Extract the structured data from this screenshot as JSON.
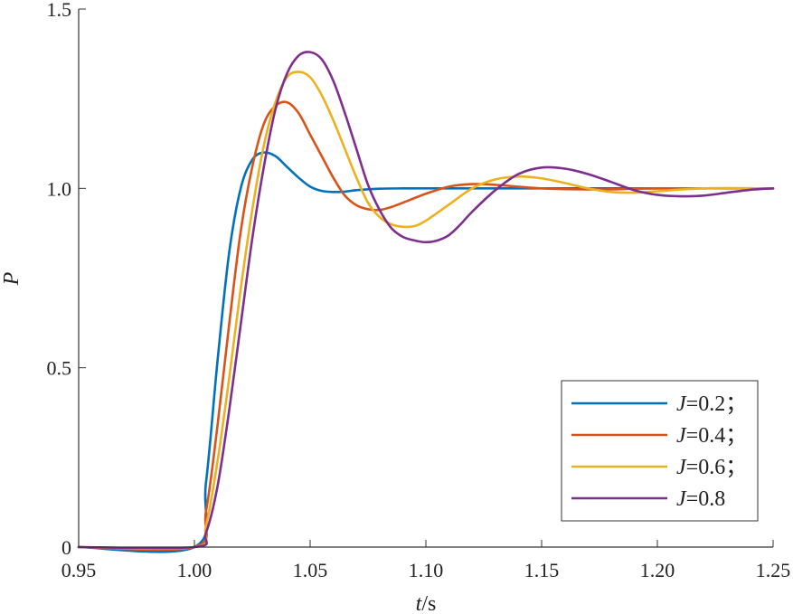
{
  "chart_data": {
    "type": "line",
    "xlabel_italic": "t",
    "xlabel_unit": "/s",
    "ylabel": "P",
    "xlim": [
      0.95,
      1.25
    ],
    "ylim": [
      0,
      1.5
    ],
    "xticks": [
      "0.95",
      "1.00",
      "1.05",
      "1.10",
      "1.15",
      "1.20",
      "1.25"
    ],
    "yticks": [
      "0",
      "0.5",
      "1.0",
      "1.5"
    ],
    "grid": false,
    "legend_position": "bottom-right",
    "series": [
      {
        "name_italic": "J",
        "name_rest": "=0.2；",
        "color": "#0072BD",
        "x": [
          0.95,
          1.0,
          1.005,
          1.01,
          1.015,
          1.02,
          1.025,
          1.03,
          1.035,
          1.04,
          1.045,
          1.05,
          1.055,
          1.06,
          1.065,
          1.07,
          1.08,
          1.09,
          1.1,
          1.12,
          1.15,
          1.2,
          1.25
        ],
        "y": [
          0,
          0,
          0.18,
          0.52,
          0.82,
          1.0,
          1.08,
          1.1,
          1.09,
          1.06,
          1.03,
          1.005,
          0.993,
          0.99,
          0.991,
          0.995,
          0.999,
          1.0,
          1.0,
          1.0,
          1.0,
          1.0,
          1.0
        ]
      },
      {
        "name_italic": "J",
        "name_rest": "=0.4；",
        "color": "#D95319",
        "x": [
          0.95,
          1.0,
          1.005,
          1.01,
          1.015,
          1.02,
          1.025,
          1.03,
          1.035,
          1.04,
          1.045,
          1.05,
          1.055,
          1.06,
          1.065,
          1.07,
          1.075,
          1.08,
          1.085,
          1.09,
          1.1,
          1.11,
          1.12,
          1.13,
          1.15,
          1.175,
          1.2,
          1.25
        ],
        "y": [
          0,
          0,
          0.1,
          0.34,
          0.62,
          0.88,
          1.06,
          1.18,
          1.23,
          1.24,
          1.21,
          1.15,
          1.09,
          1.03,
          0.98,
          0.953,
          0.942,
          0.94,
          0.948,
          0.96,
          0.985,
          1.005,
          1.012,
          1.01,
          1.0,
          0.997,
          1.0,
          1.0
        ]
      },
      {
        "name_italic": "J",
        "name_rest": "=0.6；",
        "color": "#EDB120",
        "x": [
          0.95,
          1.0,
          1.005,
          1.01,
          1.015,
          1.02,
          1.025,
          1.03,
          1.035,
          1.04,
          1.045,
          1.05,
          1.055,
          1.06,
          1.065,
          1.07,
          1.075,
          1.08,
          1.085,
          1.09,
          1.095,
          1.1,
          1.11,
          1.12,
          1.13,
          1.14,
          1.15,
          1.16,
          1.17,
          1.18,
          1.19,
          1.2,
          1.22,
          1.25
        ],
        "y": [
          0,
          0,
          0.06,
          0.24,
          0.47,
          0.72,
          0.94,
          1.12,
          1.24,
          1.31,
          1.325,
          1.31,
          1.26,
          1.19,
          1.11,
          1.03,
          0.96,
          0.92,
          0.9,
          0.893,
          0.895,
          0.91,
          0.955,
          1.0,
          1.025,
          1.033,
          1.028,
          1.015,
          1.0,
          0.99,
          0.988,
          0.992,
          1.0,
          1.0
        ]
      },
      {
        "name_italic": "J",
        "name_rest": "=0.8",
        "color": "#7E2F8E",
        "x": [
          0.95,
          1.0,
          1.005,
          1.01,
          1.015,
          1.02,
          1.025,
          1.03,
          1.035,
          1.04,
          1.045,
          1.05,
          1.055,
          1.06,
          1.065,
          1.07,
          1.075,
          1.08,
          1.085,
          1.09,
          1.095,
          1.1,
          1.105,
          1.11,
          1.115,
          1.12,
          1.13,
          1.14,
          1.15,
          1.16,
          1.17,
          1.18,
          1.19,
          1.2,
          1.21,
          1.22,
          1.23,
          1.24,
          1.25
        ],
        "y": [
          0,
          0,
          0.04,
          0.17,
          0.38,
          0.62,
          0.86,
          1.06,
          1.22,
          1.32,
          1.37,
          1.38,
          1.36,
          1.3,
          1.21,
          1.11,
          1.01,
          0.94,
          0.89,
          0.865,
          0.855,
          0.85,
          0.855,
          0.87,
          0.9,
          0.935,
          0.995,
          1.04,
          1.058,
          1.055,
          1.04,
          1.018,
          0.995,
          0.982,
          0.978,
          0.98,
          0.988,
          0.996,
          1.0
        ]
      }
    ]
  }
}
